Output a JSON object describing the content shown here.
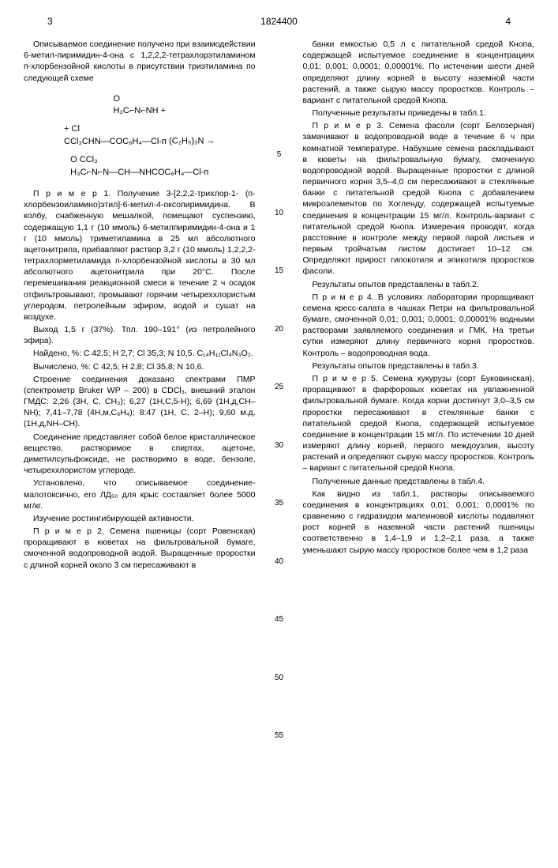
{
  "header": {
    "leftPage": "3",
    "docNumber": "1824400",
    "rightPage": "4"
  },
  "lineNumbers": [
    "5",
    "10",
    "15",
    "20",
    "25",
    "30",
    "35",
    "40",
    "45",
    "50",
    "55"
  ],
  "leftCol": {
    "p1": "Описываемое соединение получено при взаимодействии 6-метил-пиримидин-4-она с 1,2,2,2-тетрахлорэтиламином п-хлорбензойной кислоты в присутствии триэтиламина по следующей схеме",
    "chem1_line1": "O",
    "chem1_line2": "H₃C⌐N⌐NH +",
    "chem2_line1": "+ Cl",
    "chem2_line2": "CCl₃CHN—COC₆H₄—Cl-п",
    "chem2_arrow": "(C₂H₅)₃N →",
    "chem3_line1": "O   CCl₃",
    "chem3_line2": "H₃C⌐N⌐N—CH—NHCOC₆H₄—Cl-п",
    "p2": "П р и м е р 1. Получение 3-[2,2,2-трихлор-1- (п-хлорбензоиламино)этил]-6-метил-4-оксопиримидина. В колбу, снабженную мешалкой, помещают суспензию, содержащую 1,1 г (10 ммоль) 6-метилпиримидин-4-она и 1 г (10 ммоль) триметиламина в 25 мл абсолютного ацетонитрила, прибавляют раствор 3,2 г (10 ммоль) 1,2,2,2-тетрахлорметиламида п-хлорбензойной кислоты в 30 мл абсолютного ацетонитрила при 20°С. После перемешивания реакционной смеси в течение 2 ч осадок отфильтровывают, промывают горячим четыреххлористым углеродом, петролейным эфиром, водой и сушат на воздухе.",
    "p3": "Выход 1,5 г (37%). Тпл. 190–191° (из петролейного эфира).",
    "p4": "Найдено, %: С 42,5; Н 2,7; Cl 35,3; N 10,5. C₁₄H₁₁Cl₄N₃O₂.",
    "p5": "Вычислено, %: С 42,5; Н 2,8; Cl 35,8; N 10,6.",
    "p6": "Строение соединения доказано спектрами ПМР (спектрометр Bruker WP – 200) в CDCl₃, внешний эталон ГМДС: 2,26 (3Н, С, СН₃); 6,27 (1Н,С,5-Н); 6,69 (1Н,д,СН–NH); 7,41–7,78 (4Н,м,С₆Н₄); 8:47 (1Н, С, 2–Н); 9,60 м.д. (1Н,д,NH–CH).",
    "p7": "Соединение представляет собой белое кристаллическое вещество, растворимое в спиртах, ацетоне, диметилсульфоксиде, не растворимо в воде, бензоле, четыреххлористом углероде.",
    "p8": "Установлено, что описываемое соединение-малотоксично, его ЛД₅₀ для крыс составляет более 5000 мг/кг.",
    "p9": "Изучение ростингибирующей активности.",
    "p10": "П р и м е р 2. Семена пшеницы (сорт Ровенская) проращивают в кюветах на фильтровальной бумаге, смоченной водопроводной водой. Выращенные проростки с длиной корней около 3 см пересаживают в"
  },
  "rightCol": {
    "p1": "банки емкостью 0,5 л с питательной средой Кнопа, содержащей испытуемое соединение в концентрациях 0,01; 0,001; 0,0001; 0,00001%. По истечении шести дней определяют длину корней в высоту наземной части растений, а также сырую массу проростков. Контроль – вариант с питательной средой Кнопа.",
    "p2": "Полученные результаты приведены в табл.1.",
    "p3": "П р и м е р 3. Семена фасоли (сорт Белозерная) замачивают в водопроводной воде в течение 6 ч при комнатной температуре. Набухшие семена раскладывают в кюветы на фильтровальную бумагу, смоченную водопроводной водой. Выращенные проростки с длиной первичного корня 3,5–4,0 см пересаживают в стеклянные банки с питательной средой Кнопа с добавлением микроэлементов по Хогленду, содержащей испытуемые соединения в концентрации 15 мг/л. Контроль-вариант с питательной средой Кнопа. Измерения проводят, когда расстояние в контроле между первой парой листьев и первым тройчатым листом достигает 10–12 см. Определяют прирост гипокотиля и эпикотиля проростков фасоли.",
    "p4": "Результаты опытов представлены в табл.2.",
    "p5": "П р и м е р 4. В условиях лаборатории проращивают семена кресс-салата в чашках Петри на фильтровальной бумаге, смоченной 0,01; 0,001; 0,0001; 0,00001% водными растворами заявляемого соединения и ГМК. На третьи сутки измеряют длину первичного корня проростков. Контроль – водопроводная вода.",
    "p6": "Результаты опытов представлены в табл.3.",
    "p7": "П р и м е р 5. Семена кукурузы (сорт Буковинская), проращивают в фарфоровых кюветах на увлажненной фильтровальной бумаге. Когда корни достигнут 3,0–3,5 см проростки пересаживают в стеклянные банки с питательной средой Кнопа, содержащей испытуемое соединение в концентрации 15 мг/л. По истечении 10 дней измеряют длину корней, первого междоузлия, высоту растений и определяют сырую массу проростков. Контроль – вариант с питательной средой Кнопа.",
    "p8": "Полученные данные представлены в табл.4.",
    "p9": "Как видно из табл.1, растворы описываемого соединения в концентрациях 0,01; 0,001; 0,0001% по сравнению с гидразидом малеиновой кислоты подавляют рост корней в наземной части растений пшеницы соответственно в 1,4–1,9 и 1,2–2,1 раза, а также уменьшают сырую массу проростков более чем в 1,2 раза"
  }
}
